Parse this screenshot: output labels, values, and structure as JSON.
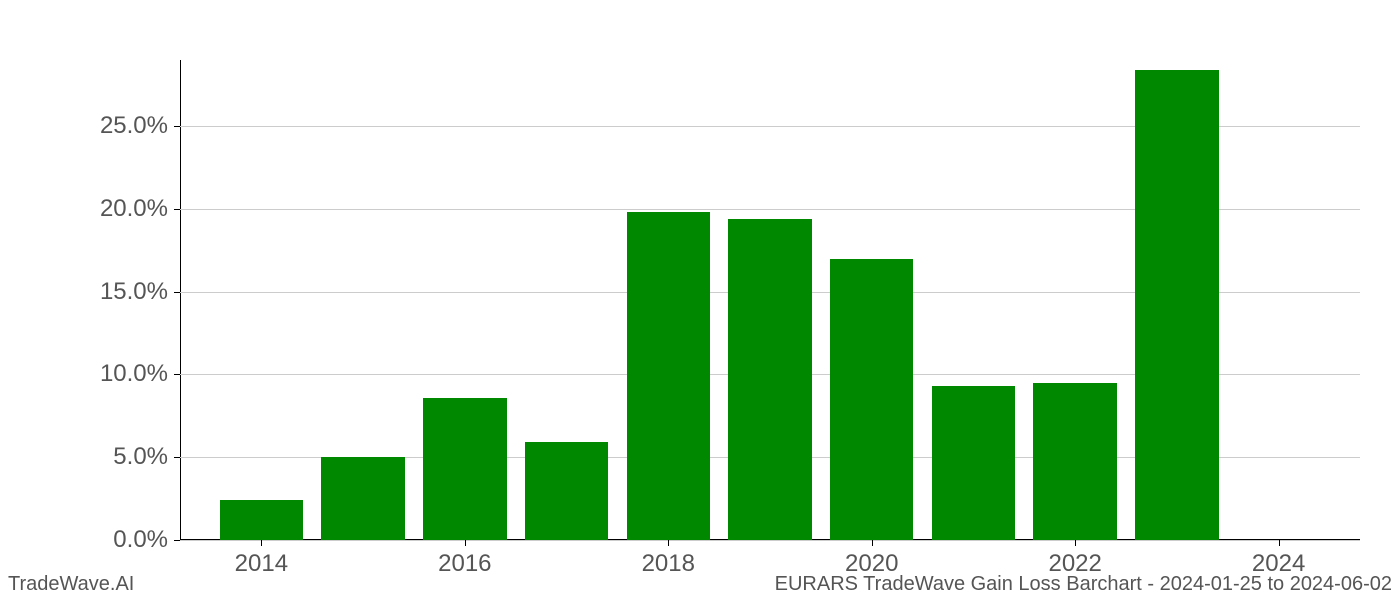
{
  "chart": {
    "type": "bar",
    "years": [
      2014,
      2015,
      2016,
      2017,
      2018,
      2019,
      2020,
      2021,
      2022,
      2023,
      2024
    ],
    "values": [
      2.4,
      5.0,
      8.6,
      5.9,
      19.8,
      19.4,
      17.0,
      9.3,
      9.5,
      28.4,
      0.0
    ],
    "bar_color": "#008800",
    "bar_width_year_fraction": 0.82,
    "background_color": "#ffffff",
    "grid_color": "#cccccc",
    "axis_color": "#000000",
    "tick_label_color": "#555555",
    "tick_fontsize": 24,
    "y_ticks": [
      0.0,
      5.0,
      10.0,
      15.0,
      20.0,
      25.0
    ],
    "y_tick_labels": [
      "0.0%",
      "5.0%",
      "10.0%",
      "15.0%",
      "20.0%",
      "25.0%"
    ],
    "y_min": 0.0,
    "y_max": 29.0,
    "x_min": 2013.2,
    "x_max": 2024.8,
    "x_ticks": [
      2014,
      2016,
      2018,
      2020,
      2022,
      2024
    ],
    "x_tick_labels": [
      "2014",
      "2016",
      "2018",
      "2020",
      "2022",
      "2024"
    ]
  },
  "footer": {
    "left": "TradeWave.AI",
    "right": "EURARS TradeWave Gain Loss Barchart - 2024-01-25 to 2024-06-02",
    "color": "#555555",
    "fontsize": 20
  }
}
